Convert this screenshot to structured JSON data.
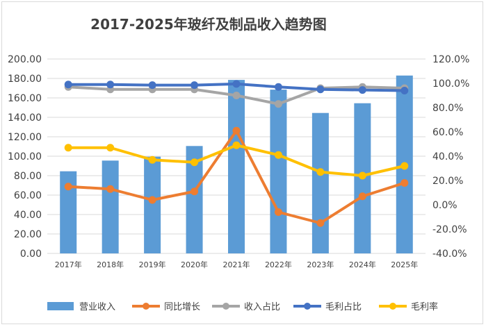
{
  "chart_data": {
    "type": "bar+line",
    "title": "2017-2025年玻纤及制品收入趋势图",
    "categories": [
      "2017年",
      "2018年",
      "2019年",
      "2020年",
      "2021年",
      "2022年",
      "2023年",
      "2024年",
      "2025年"
    ],
    "left_axis": {
      "ylim": [
        0,
        200
      ],
      "ticks": [
        "0.00",
        "20.00",
        "40.00",
        "60.00",
        "80.00",
        "100.00",
        "120.00",
        "140.00",
        "160.00",
        "180.00",
        "200.00"
      ]
    },
    "right_axis": {
      "ylim": [
        -0.4,
        1.2
      ],
      "ticks": [
        "-40.0%",
        "-20.0%",
        "0.0%",
        "20.0%",
        "40.0%",
        "60.0%",
        "80.0%",
        "100.0%",
        "120.0%"
      ]
    },
    "grid": true,
    "legend_position": "bottom",
    "series": [
      {
        "name": "营业收入",
        "type": "bar",
        "axis": "left",
        "color": "#5b9bd5",
        "values": [
          84.5,
          95.5,
          99.5,
          110.5,
          178.5,
          168.5,
          144.5,
          154.5,
          183.0
        ]
      },
      {
        "name": "同比增长",
        "type": "line",
        "axis": "right",
        "color": "#ed7d31",
        "values": [
          0.15,
          0.13,
          0.04,
          0.11,
          0.61,
          -0.06,
          -0.15,
          0.07,
          0.18
        ]
      },
      {
        "name": "收入占比",
        "type": "line",
        "axis": "right",
        "color": "#a5a5a5",
        "values": [
          0.97,
          0.95,
          0.95,
          0.95,
          0.9,
          0.83,
          0.96,
          0.97,
          0.96
        ]
      },
      {
        "name": "毛利占比",
        "type": "line",
        "axis": "right",
        "color": "#4472c4",
        "values": [
          0.99,
          0.99,
          0.985,
          0.985,
          0.995,
          0.97,
          0.95,
          0.945,
          0.94
        ]
      },
      {
        "name": "毛利率",
        "type": "line",
        "axis": "right",
        "color": "#ffc000",
        "values": [
          0.47,
          0.47,
          0.37,
          0.35,
          0.49,
          0.41,
          0.27,
          0.24,
          0.32
        ]
      }
    ]
  }
}
